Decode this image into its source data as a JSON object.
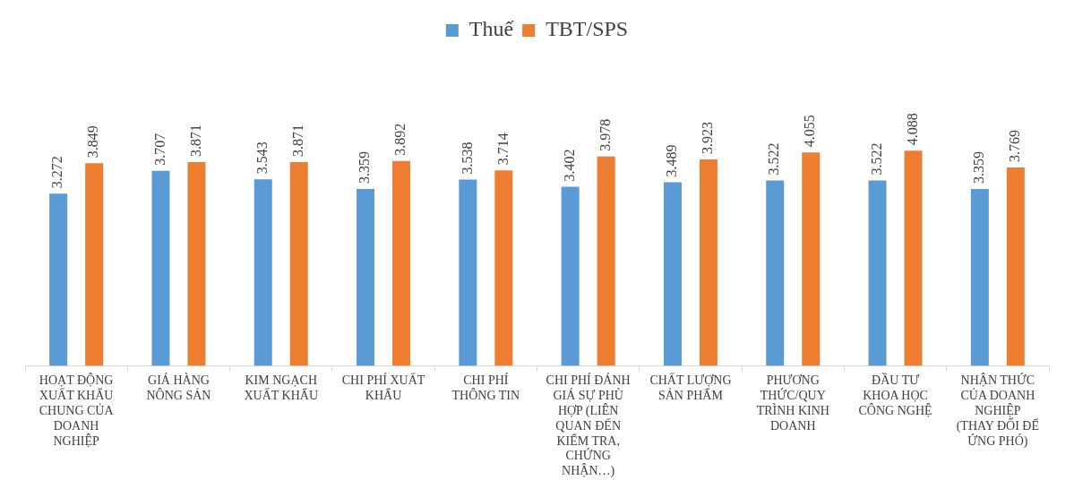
{
  "chart_data": {
    "type": "bar",
    "categories": [
      "HOẠT ĐỘNG XUẤT KHẨU CHUNG CỦA DOANH NGHIỆP",
      "GIÁ HÀNG NÔNG SẢN",
      "KIM NGẠCH XUẤT KHẨU",
      "CHI PHÍ XUẤT KHẨU",
      "CHI PHÍ THÔNG TIN",
      "CHI PHÍ ĐÁNH GIÁ SỰ PHÙ HỢP (LIÊN QUAN ĐẾN KIỂM TRA, CHỨNG NHẬN…)",
      "CHẤT LƯỢNG SẢN PHẨM",
      "PHƯƠNG THỨC/QUY TRÌNH KINH DOANH",
      "ĐẦU TƯ KHOA HỌC CÔNG NGHỆ",
      "NHẬN THỨC CỦA DOANH NGHIỆP (THAY ĐỔI ĐỂ ỨNG PHÓ)"
    ],
    "series": [
      {
        "name": "Thuế",
        "color": "#5b9bd5",
        "values": [
          3.272,
          3.707,
          3.543,
          3.359,
          3.538,
          3.402,
          3.489,
          3.522,
          3.522,
          3.359
        ]
      },
      {
        "name": "TBT/SPS",
        "color": "#ed7d31",
        "values": [
          3.849,
          3.871,
          3.871,
          3.892,
          3.714,
          3.978,
          3.923,
          4.055,
          4.088,
          3.769
        ]
      }
    ],
    "data_labels": true,
    "legend": "top",
    "grid": false
  }
}
